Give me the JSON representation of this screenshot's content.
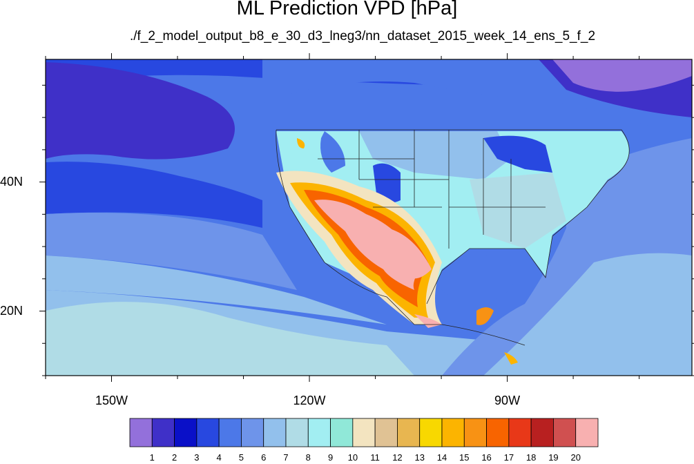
{
  "title": "ML Prediction VPD [hPa]",
  "subtitle": "./f_2_model_output_b8_e_30_d3_lneg3/nn_dataset_2015_week_14_ens_5_f_2",
  "map": {
    "lon_range": [
      -160,
      -62
    ],
    "lat_range": [
      10,
      59
    ],
    "lon_ticks": [
      {
        "value": -150,
        "label": "150W"
      },
      {
        "value": -120,
        "label": "120W"
      },
      {
        "value": -90,
        "label": "90W"
      }
    ],
    "lat_ticks": [
      {
        "value": 40,
        "label": "40N"
      },
      {
        "value": 20,
        "label": "20N"
      }
    ]
  },
  "colorbar": {
    "colors": [
      "#9370db",
      "#3f30c8",
      "#0a10c8",
      "#2848e0",
      "#4c78e8",
      "#6e94ea",
      "#92c0ec",
      "#b0dce6",
      "#a2eef2",
      "#90e8d8",
      "#f3e4c0",
      "#e0c294",
      "#e8b650",
      "#f8d800",
      "#fcb400",
      "#f89214",
      "#f86400",
      "#e83818",
      "#b82020",
      "#d05050",
      "#f8b0b0"
    ],
    "labels": [
      "1",
      "2",
      "3",
      "4",
      "5",
      "6",
      "7",
      "8",
      "9",
      "10",
      "11",
      "12",
      "13",
      "14",
      "15",
      "16",
      "17",
      "18",
      "19",
      "20"
    ]
  }
}
